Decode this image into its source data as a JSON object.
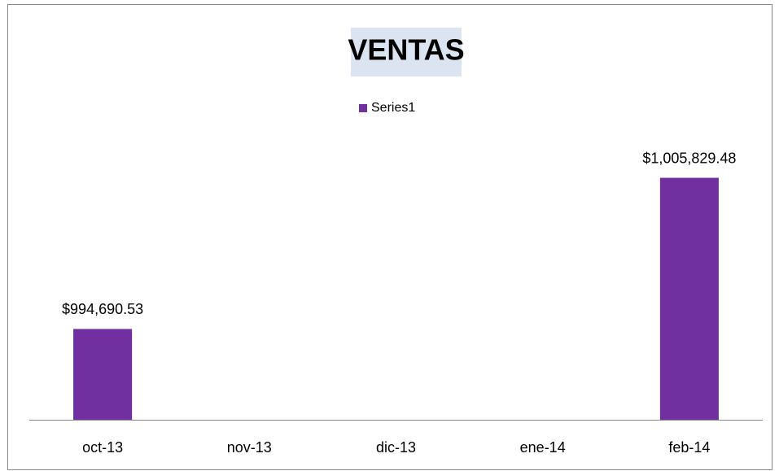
{
  "chart_data": {
    "type": "bar",
    "title": "VENTAS",
    "categories": [
      "oct-13",
      "nov-13",
      "dic-13",
      "ene-14",
      "feb-14"
    ],
    "series": [
      {
        "name": "Series1",
        "color": "#7030a0",
        "values": [
          994690.53,
          null,
          null,
          null,
          1005829.48
        ],
        "value_labels": [
          "$994,690.53",
          null,
          null,
          null,
          "$1,005,829.48"
        ]
      }
    ],
    "ylim": [
      988000,
      1010000
    ],
    "legend": "top",
    "grid": false
  }
}
